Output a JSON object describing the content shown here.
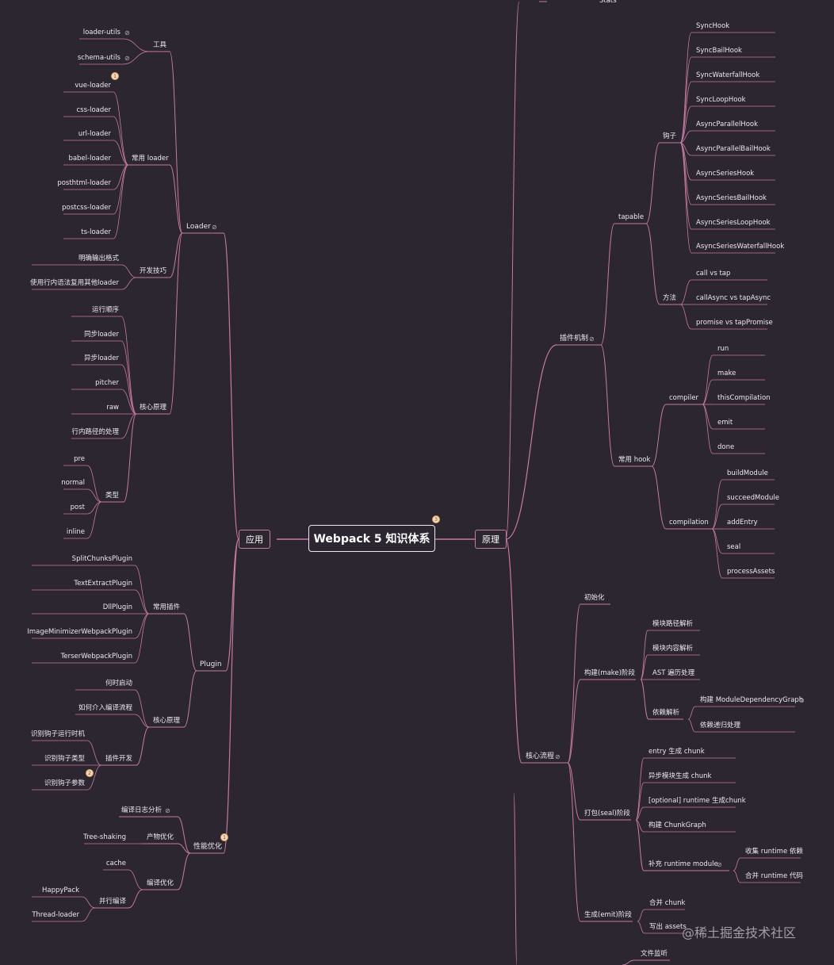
{
  "root": {
    "label": "Webpack 5 知识体系",
    "badge": "3"
  },
  "left_main": "应用",
  "right_main": "原理",
  "left": {
    "loader": {
      "label": "Loader",
      "tools": {
        "label": "工具",
        "items": [
          "loader-utils",
          "schema-utils"
        ]
      },
      "common": {
        "label": "常用 loader",
        "badge": "1",
        "items": [
          "vue-loader",
          "css-loader",
          "url-loader",
          "babel-loader",
          "posthtml-loader",
          "postcss-loader",
          "ts-loader"
        ]
      },
      "dev": {
        "label": "开发技巧",
        "items": [
          "明确输出格式",
          "使用行内语法复用其他loader"
        ]
      },
      "core": {
        "label": "核心原理",
        "items": [
          "运行顺序",
          "同步loader",
          "异步loader",
          "pitcher",
          "raw",
          "行内路径的处理"
        ],
        "types": {
          "label": "类型",
          "items": [
            "pre",
            "normal",
            "post",
            "inline"
          ]
        }
      }
    },
    "plugin": {
      "label": "Plugin",
      "common": {
        "label": "常用插件",
        "items": [
          "SplitChunksPlugin",
          "TextExtractPlugin",
          "DllPlugin",
          "ImageMinimizerWebpackPlugin",
          "TerserWebpackPlugin"
        ]
      },
      "core": {
        "label": "核心原理",
        "items": [
          "何时启动",
          "如何介入编译流程"
        ],
        "dev": {
          "label": "插件开发",
          "items": [
            "识别钩子运行时机",
            "识别钩子类型",
            "识别钩子参数"
          ],
          "badge": "2"
        }
      }
    },
    "perf": {
      "label": "性能优化",
      "badge": "1",
      "log": "编译日志分析",
      "output": {
        "label": "产物优化",
        "items": [
          "Tree-shaking"
        ]
      },
      "compile": {
        "label": "编译优化",
        "cache": "cache",
        "parallel": {
          "label": "并行编译",
          "items": [
            "HappyPack",
            "Thread-loader"
          ]
        }
      }
    }
  },
  "right": {
    "stats": "Stats",
    "plugin": {
      "label": "插件机制",
      "tapable": {
        "label": "tapable",
        "hooks": {
          "label": "钩子",
          "items": [
            "SyncHook",
            "SyncBailHook",
            "SyncWaterfallHook",
            "SyncLoopHook",
            "AsyncParallelHook",
            "AsyncParallelBailHook",
            "AsyncSeriesHook",
            "AsyncSeriesBailHook",
            "AsyncSeriesLoopHook",
            "AsyncSeriesWaterfallHook"
          ]
        },
        "methods": {
          "label": "方法",
          "items": [
            "call vs tap",
            "callAsync vs tapAsync",
            "promise vs tapPromise"
          ]
        }
      },
      "common": {
        "label": "常用 hook",
        "compiler": {
          "label": "compiler",
          "items": [
            "run",
            "make",
            "thisCompilation",
            "emit",
            "done"
          ]
        },
        "compilation": {
          "label": "compilation",
          "items": [
            "buildModule",
            "succeedModule",
            "addEntry",
            "seal",
            "processAssets"
          ]
        }
      }
    },
    "flow": {
      "label": "核心流程",
      "init": "初始化",
      "make": {
        "label": "构建(make)阶段",
        "items": [
          "模块路径解析",
          "模块内容解析",
          "AST 遍历处理"
        ],
        "dep": {
          "label": "依赖解析",
          "items": [
            "构建 ModuleDependencyGraph",
            "依赖递归处理"
          ]
        }
      },
      "seal": {
        "label": "打包(seal)阶段",
        "items": [
          "entry 生成 chunk",
          "异步模块生成 chunk",
          "[optional] runtime 生成chunk",
          "构建 ChunkGraph"
        ],
        "runtime": {
          "label": "补充 runtime module",
          "items": [
            "收集 runtime 依赖",
            "合并 runtime 代码"
          ]
        }
      },
      "emit": {
        "label": "生成(emit)阶段",
        "items": [
          "合并 chunk",
          "写出 assets"
        ]
      }
    },
    "watch": "文件监听"
  },
  "watermark": "@稀土掘金技术社区",
  "colors": {
    "background": "#2b2630",
    "line": "#c87aa2",
    "text": "#ece7f0"
  }
}
